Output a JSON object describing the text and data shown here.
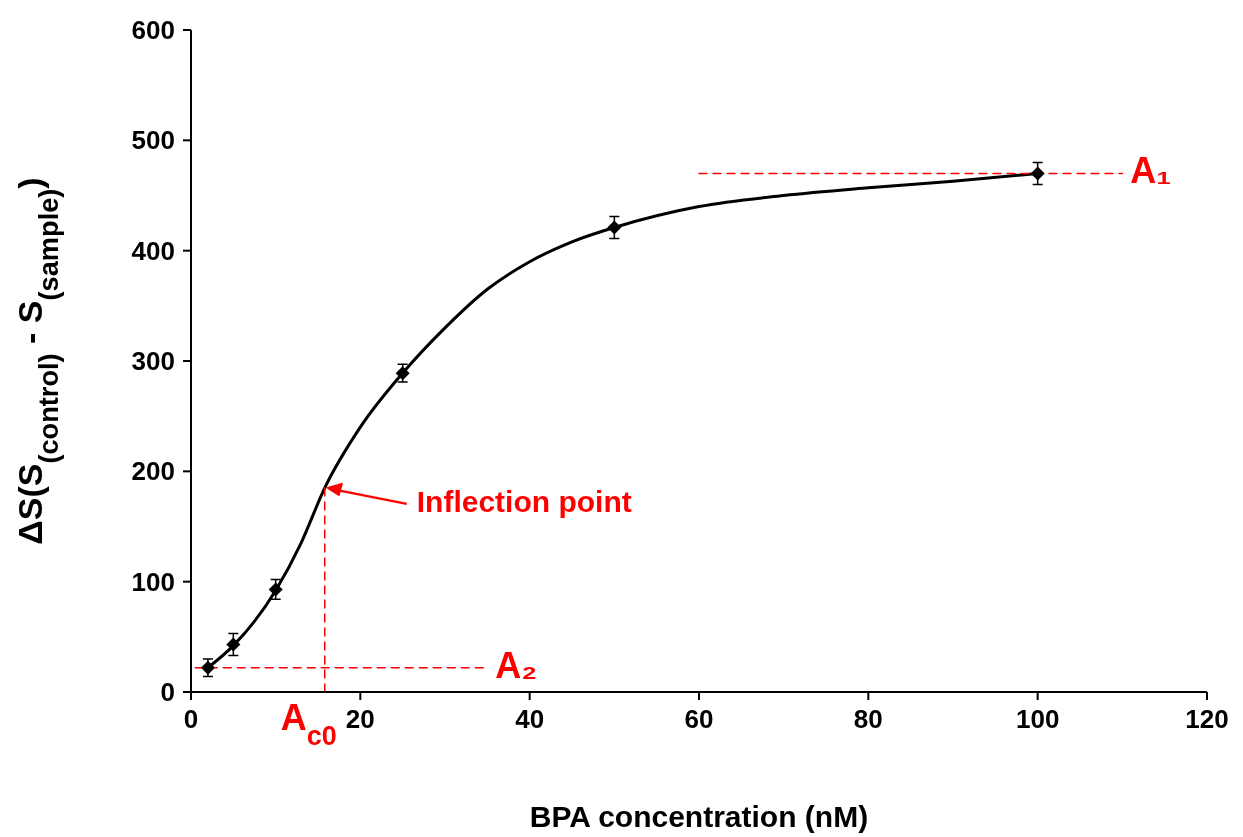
{
  "chart_data": {
    "type": "scatter",
    "xlabel": "BPA concentration (nM)",
    "ylabel": "ΔS(S$_{(control)}$ - S$_{(sample)}$)",
    "xlim": [
      0,
      120
    ],
    "xticks": [
      0,
      20,
      40,
      60,
      80,
      100,
      120
    ],
    "ylim": [
      0,
      600
    ],
    "yticks": [
      0,
      100,
      200,
      300,
      400,
      500,
      600
    ],
    "grid": false,
    "series": [
      {
        "type": "line",
        "color": "#000000",
        "marker": "none",
        "line_style": "solid",
        "x": [
          2,
          5,
          10,
          13,
          15.8,
          20,
          25,
          30,
          35,
          40,
          45,
          50,
          60,
          70,
          80,
          90,
          100
        ],
        "values": [
          22,
          42,
          92,
          135,
          185,
          240,
          289,
          330,
          365,
          390,
          408,
          421,
          440,
          450,
          457,
          463,
          470
        ]
      },
      {
        "type": "line",
        "color": "#ff0000",
        "marker": "none",
        "line_style": "dashed",
        "x": [
          60,
          110
        ],
        "values": [
          470,
          470
        ]
      },
      {
        "type": "line",
        "color": "#ff0000",
        "marker": "none",
        "line_style": "dashed",
        "x": [
          0.5,
          35
        ],
        "values": [
          22,
          22
        ]
      },
      {
        "type": "line",
        "color": "#ff0000",
        "marker": "none",
        "line_style": "dashed",
        "x": [
          15.8,
          15.8
        ],
        "values": [
          0,
          185
        ]
      },
      {
        "color": "#000000",
        "marker": "diamond",
        "x": [
          2,
          5,
          10,
          25,
          50,
          100
        ],
        "values": [
          22,
          43,
          93,
          289,
          421,
          470
        ],
        "errors": [
          8,
          10,
          9,
          8,
          10,
          10
        ]
      }
    ],
    "annotations": [
      {
        "text": "Inflection point",
        "x": 15.8,
        "y": 185
      },
      {
        "text": "A₁",
        "x": 110,
        "y": 470
      },
      {
        "text": "A₂",
        "x": 35,
        "y": 22
      },
      {
        "text": "A$_{c0}$",
        "x": 15.8,
        "y": 0
      }
    ]
  }
}
